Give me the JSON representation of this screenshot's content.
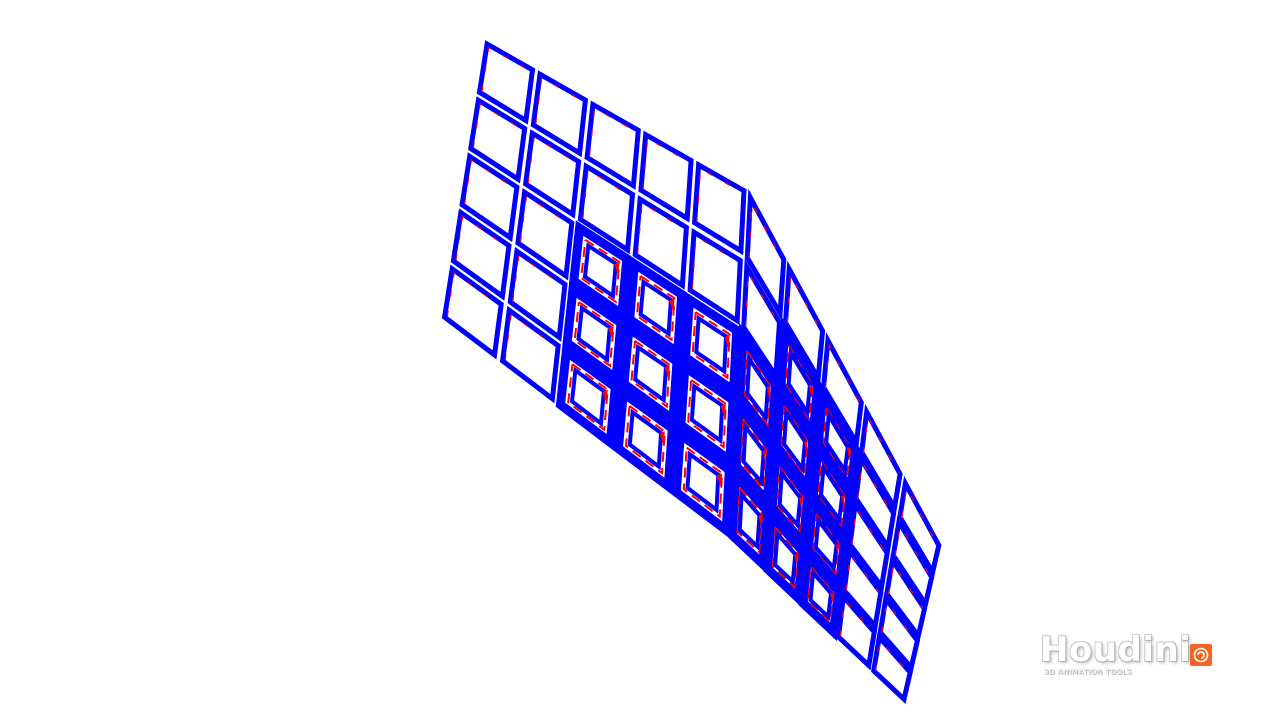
{
  "viewport": {
    "background": "#ffffff",
    "mesh": {
      "outline_color": "#0000ff",
      "attribute_color": "#ff0000",
      "rows": 5,
      "columns": 10
    }
  },
  "watermark": {
    "brand": "Houdini",
    "tagline": "3D ANIMATION TOOLS",
    "logo_icon": "houdini-swirl-icon",
    "logo_color": "#f26522"
  }
}
